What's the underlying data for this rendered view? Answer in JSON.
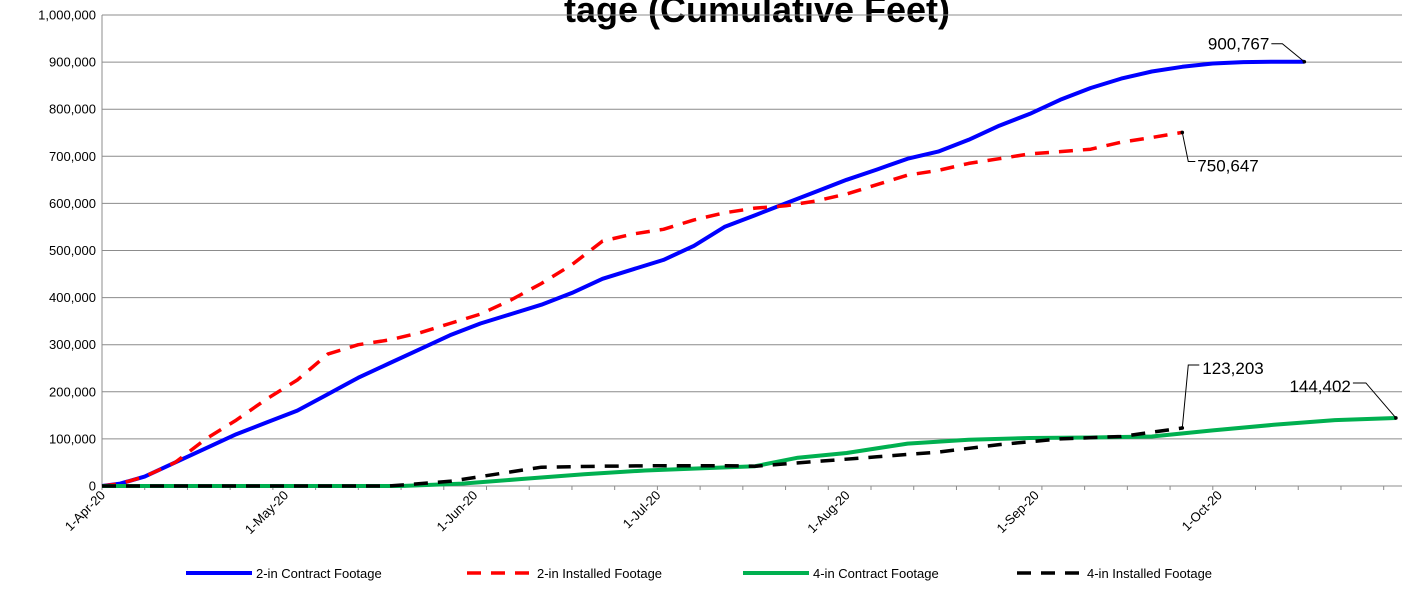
{
  "chart_data": {
    "type": "line",
    "title": "Footage (Cumulative Feet)",
    "title_visible_text": "tage (Cumulative Feet)",
    "xlabel": "",
    "ylabel": "",
    "ylim": [
      0,
      1000000
    ],
    "yticks": [
      0,
      100000,
      200000,
      300000,
      400000,
      500000,
      600000,
      700000,
      800000,
      900000,
      1000000
    ],
    "ytick_labels": [
      "0",
      "100,000",
      "200,000",
      "300,000",
      "400,000",
      "500,000",
      "600,000",
      "700,000",
      "800,000",
      "900,000",
      "1,000,000"
    ],
    "xlim": [
      "2020-04-01",
      "2020-10-31"
    ],
    "xticks": [
      "2020-04-01",
      "2020-05-01",
      "2020-06-01",
      "2020-07-01",
      "2020-08-01",
      "2020-09-01",
      "2020-10-01"
    ],
    "xtick_labels": [
      "1-Apr-20",
      "1-May-20",
      "1-Jun-20",
      "1-Jul-20",
      "1-Aug-20",
      "1-Sep-20",
      "1-Oct-20"
    ],
    "grid": "horizontal",
    "legend_position": "bottom",
    "series": [
      {
        "name": "2-in Contract Footage",
        "color": "#0000ff",
        "dash": "solid",
        "x": [
          "2020-04-01",
          "2020-04-04",
          "2020-04-08",
          "2020-04-13",
          "2020-04-18",
          "2020-04-23",
          "2020-04-28",
          "2020-05-03",
          "2020-05-08",
          "2020-05-13",
          "2020-05-18",
          "2020-05-23",
          "2020-05-28",
          "2020-06-02",
          "2020-06-07",
          "2020-06-12",
          "2020-06-17",
          "2020-06-22",
          "2020-06-27",
          "2020-07-02",
          "2020-07-07",
          "2020-07-12",
          "2020-07-17",
          "2020-07-22",
          "2020-07-27",
          "2020-08-01",
          "2020-08-06",
          "2020-08-11",
          "2020-08-16",
          "2020-08-21",
          "2020-08-26",
          "2020-08-31",
          "2020-09-05",
          "2020-09-10",
          "2020-09-15",
          "2020-09-20",
          "2020-09-25",
          "2020-09-30",
          "2020-10-05",
          "2020-10-10",
          "2020-10-15"
        ],
        "values": [
          0,
          5000,
          20000,
          50000,
          80000,
          110000,
          135000,
          160000,
          195000,
          230000,
          260000,
          290000,
          320000,
          345000,
          365000,
          385000,
          410000,
          440000,
          460000,
          480000,
          510000,
          550000,
          575000,
          600000,
          625000,
          650000,
          672000,
          695000,
          710000,
          735000,
          765000,
          790000,
          820000,
          845000,
          865000,
          880000,
          890000,
          897000,
          900000,
          900767,
          900767
        ]
      },
      {
        "name": "2-in Installed Footage",
        "color": "#ff0000",
        "dash": "dashed",
        "x": [
          "2020-04-01",
          "2020-04-04",
          "2020-04-08",
          "2020-04-13",
          "2020-04-18",
          "2020-04-23",
          "2020-04-28",
          "2020-05-03",
          "2020-05-08",
          "2020-05-13",
          "2020-05-18",
          "2020-05-23",
          "2020-05-28",
          "2020-06-02",
          "2020-06-07",
          "2020-06-12",
          "2020-06-17",
          "2020-06-22",
          "2020-06-27",
          "2020-07-02",
          "2020-07-07",
          "2020-07-12",
          "2020-07-17",
          "2020-07-22",
          "2020-07-27",
          "2020-08-01",
          "2020-08-06",
          "2020-08-11",
          "2020-08-16",
          "2020-08-21",
          "2020-08-26",
          "2020-08-31",
          "2020-09-05",
          "2020-09-10",
          "2020-09-15",
          "2020-09-20",
          "2020-09-25"
        ],
        "values": [
          0,
          5000,
          20000,
          50000,
          100000,
          140000,
          185000,
          225000,
          280000,
          300000,
          310000,
          325000,
          345000,
          365000,
          395000,
          430000,
          470000,
          520000,
          535000,
          545000,
          565000,
          580000,
          590000,
          595000,
          605000,
          620000,
          640000,
          660000,
          670000,
          685000,
          695000,
          705000,
          710000,
          715000,
          730000,
          740000,
          750647
        ]
      },
      {
        "name": "4-in Contract Footage",
        "color": "#00b050",
        "dash": "solid",
        "x": [
          "2020-04-01",
          "2020-05-01",
          "2020-05-20",
          "2020-05-30",
          "2020-06-09",
          "2020-06-19",
          "2020-06-29",
          "2020-07-09",
          "2020-07-17",
          "2020-07-24",
          "2020-08-01",
          "2020-08-11",
          "2020-08-21",
          "2020-08-31",
          "2020-09-10",
          "2020-09-20",
          "2020-09-30",
          "2020-10-10",
          "2020-10-20",
          "2020-10-30"
        ],
        "values": [
          0,
          0,
          0,
          5000,
          15000,
          25000,
          33000,
          38000,
          42000,
          60000,
          70000,
          90000,
          98000,
          102000,
          103000,
          105000,
          118000,
          130000,
          140000,
          144402
        ]
      },
      {
        "name": "4-in Installed Footage",
        "color": "#000000",
        "dash": "dashed",
        "x": [
          "2020-04-01",
          "2020-05-01",
          "2020-05-18",
          "2020-05-28",
          "2020-06-07",
          "2020-06-12",
          "2020-06-22",
          "2020-07-02",
          "2020-07-12",
          "2020-07-17",
          "2020-07-27",
          "2020-08-06",
          "2020-08-16",
          "2020-08-26",
          "2020-09-05",
          "2020-09-15",
          "2020-09-25"
        ],
        "values": [
          0,
          0,
          0,
          10000,
          30000,
          40000,
          42000,
          43000,
          43000,
          42000,
          52000,
          62000,
          72000,
          88000,
          100000,
          105000,
          123203
        ]
      }
    ],
    "annotations": [
      {
        "text": "900,767",
        "series": "2-in Contract Footage",
        "x": "2020-10-15",
        "y": 900767
      },
      {
        "text": "750,647",
        "series": "2-in Installed Footage",
        "x": "2020-09-25",
        "y": 750647
      },
      {
        "text": "123,203",
        "series": "4-in Installed Footage",
        "x": "2020-09-25",
        "y": 123203
      },
      {
        "text": "144,402",
        "series": "4-in Contract Footage",
        "x": "2020-10-30",
        "y": 144402
      }
    ]
  }
}
